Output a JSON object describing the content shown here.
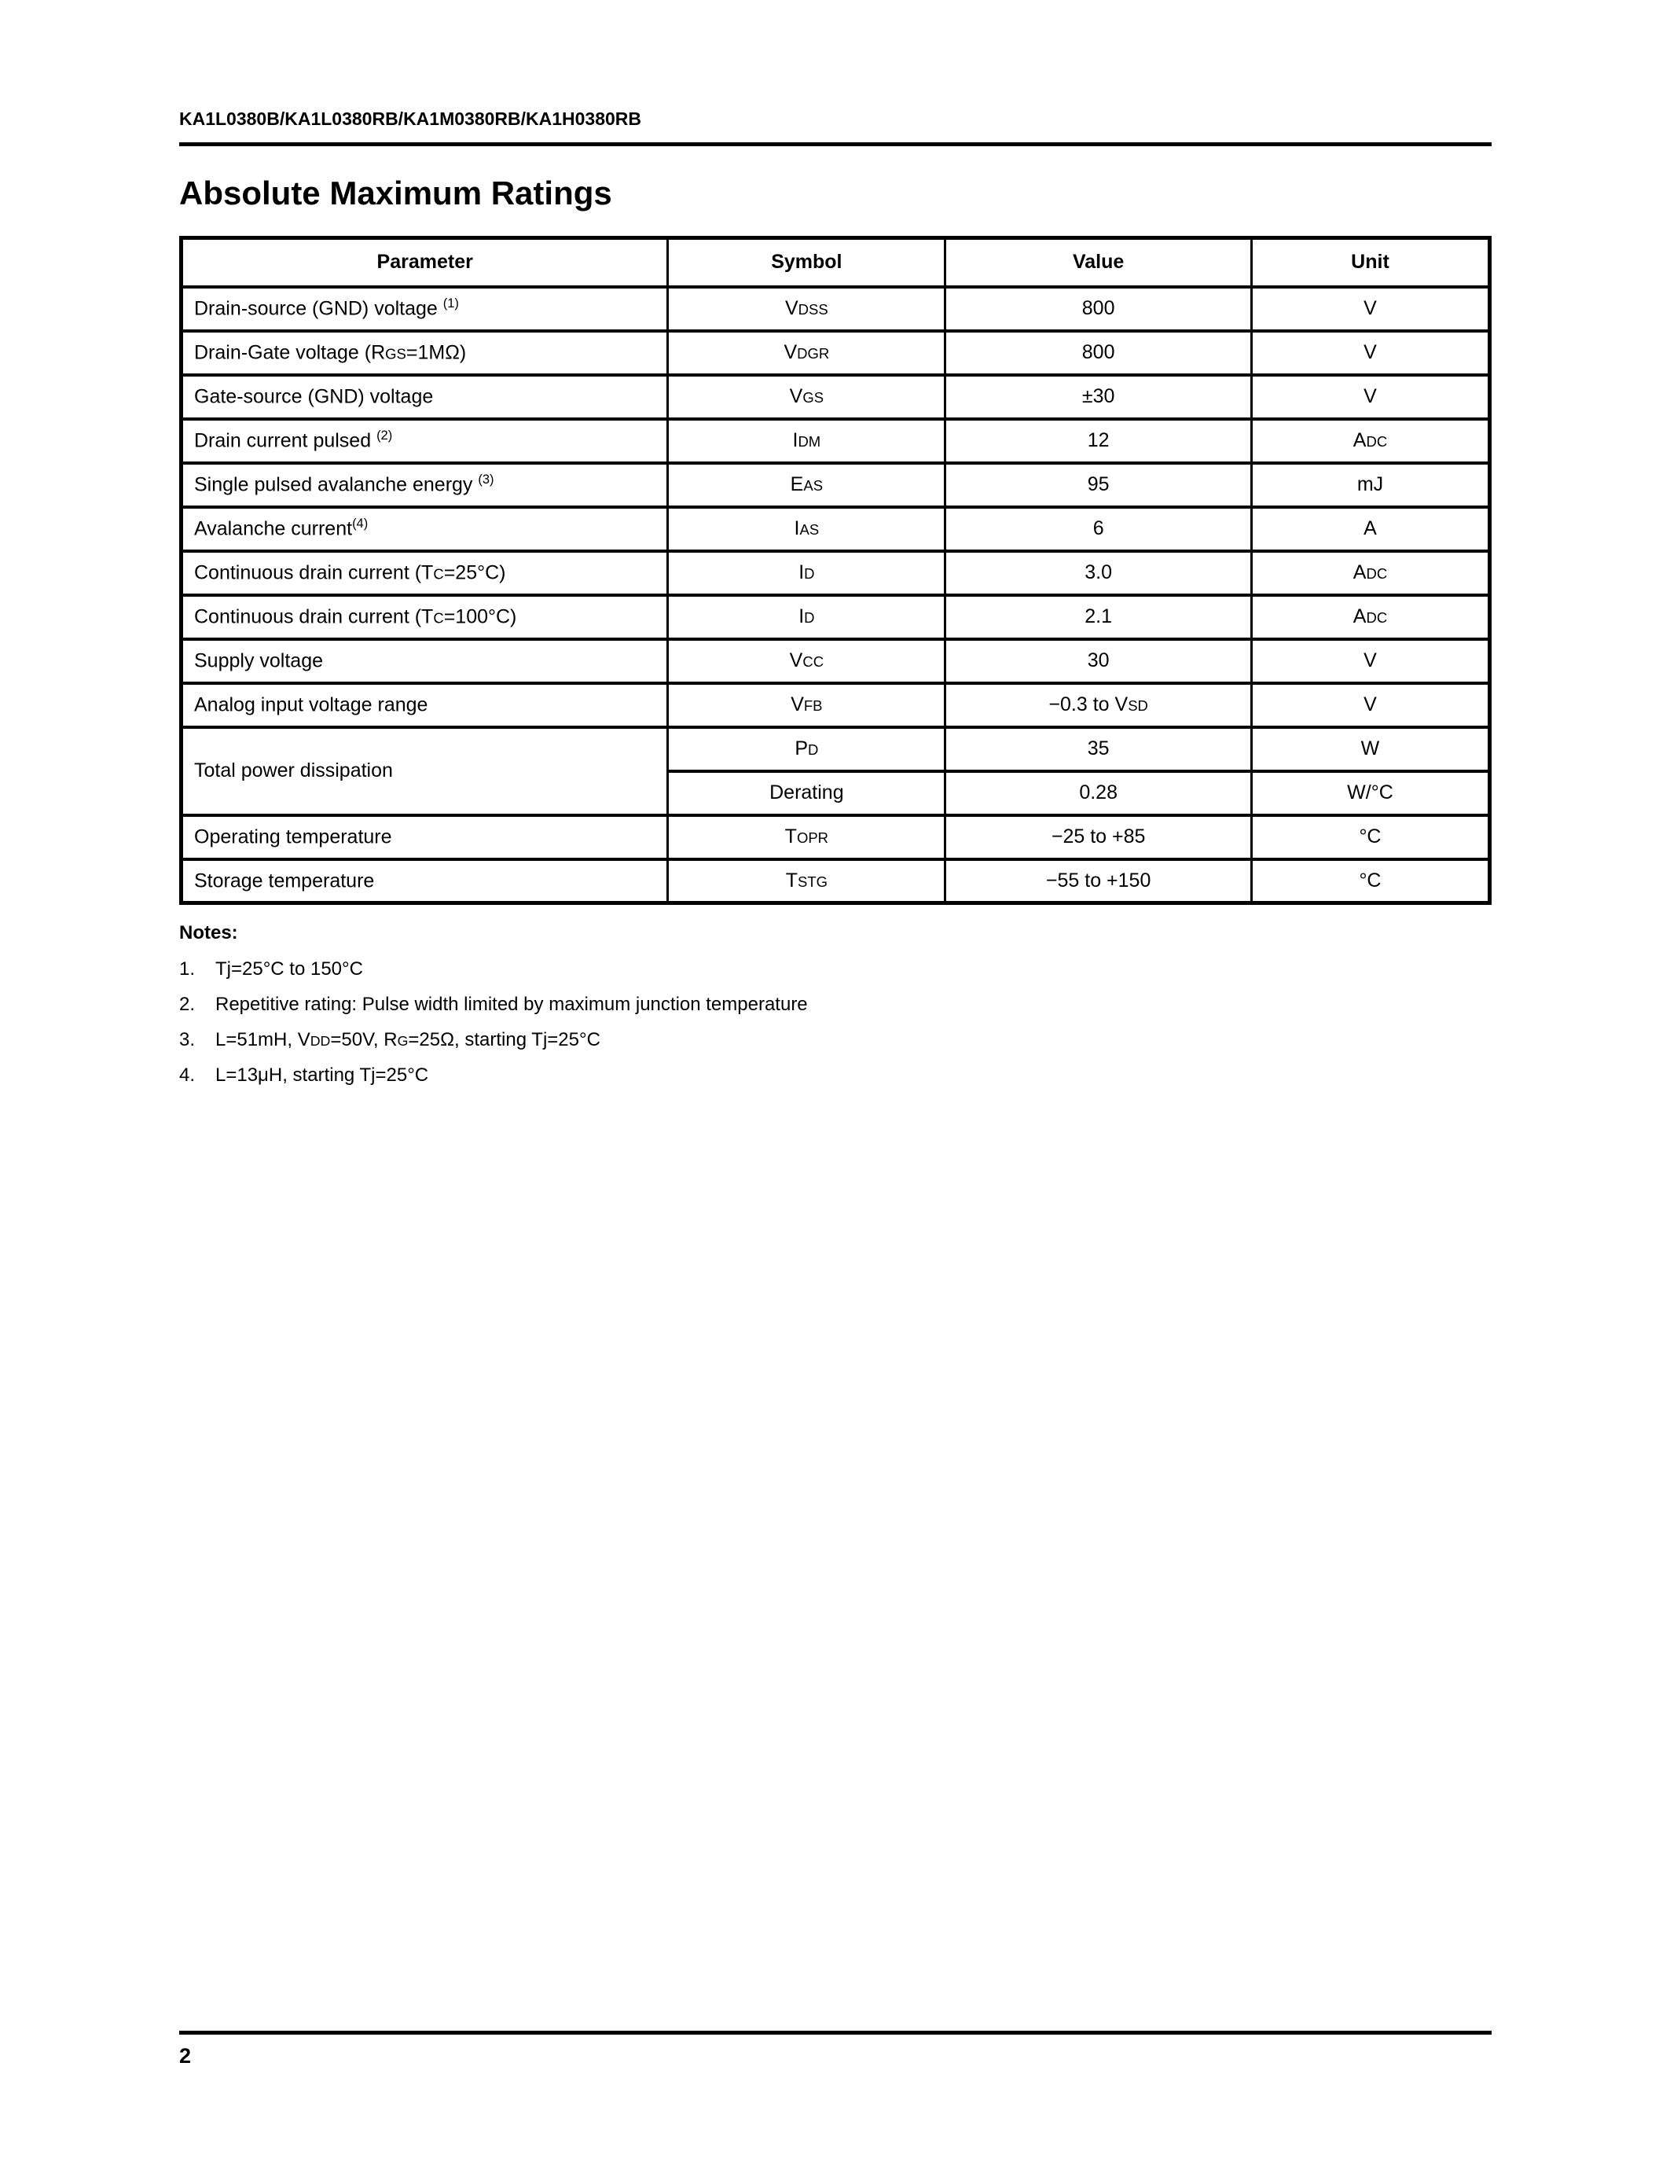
{
  "page": {
    "header": "KA1L0380B/KA1L0380RB/KA1M0380RB/KA1H0380RB",
    "title": "Absolute Maximum Ratings",
    "page_number": "2"
  },
  "table": {
    "headers": {
      "parameter": "Parameter",
      "symbol": "Symbol",
      "value": "Value",
      "unit": "Unit"
    },
    "rows": [
      {
        "p1": "Drain-source (GND) voltage ",
        "psup": "(1)",
        "s1": "V",
        "ssub": "DSS",
        "v1": "800",
        "u1": "V"
      },
      {
        "p1": "Drain-Gate voltage (R",
        "psub": "GS",
        "p2": "=1MΩ)",
        "s1": "V",
        "ssub": "DGR",
        "v1": "800",
        "u1": "V"
      },
      {
        "p1": "Gate-source (GND) voltage",
        "s1": "V",
        "ssub": "GS",
        "v1": "±30",
        "u1": "V"
      },
      {
        "p1": "Drain current pulsed ",
        "psup": "(2)",
        "s1": "I",
        "ssub": "DM",
        "v1": "12",
        "u1": "A",
        "usub": "DC"
      },
      {
        "p1": "Single pulsed avalanche energy ",
        "psup": "(3)",
        "s1": "E",
        "ssub": "AS",
        "v1": "95",
        "u1": "mJ"
      },
      {
        "p1": "Avalanche current",
        "psup": "(4)",
        "s1": "I",
        "ssub": "AS",
        "v1": "6",
        "u1": "A"
      },
      {
        "p1": "Continuous drain current (T",
        "psub": "C",
        "p2": "=25°C)",
        "s1": "I",
        "ssub": "D",
        "v1": "3.0",
        "u1": "A",
        "usub": "DC"
      },
      {
        "p1": "Continuous drain current (T",
        "psub": "C",
        "p2": "=100°C)",
        "s1": "I",
        "ssub": "D",
        "v1": "2.1",
        "u1": "A",
        "usub": "DC"
      },
      {
        "p1": "Supply voltage",
        "s1": "V",
        "ssub": "CC",
        "v1": "30",
        "u1": "V"
      },
      {
        "p1": "Analog input voltage range",
        "s1": "V",
        "ssub": "FB",
        "v1": "−0.3 to V",
        "vsub": "SD",
        "u1": "V"
      },
      {
        "p1": "Total power dissipation",
        "s1": "P",
        "ssub": "D",
        "v1": "35",
        "u1": "W"
      },
      {
        "s1": "Derating",
        "v1": "0.28",
        "u1": "W/°C"
      },
      {
        "p1": "Operating temperature",
        "s1": "T",
        "ssub": "OPR",
        "v1": "−25 to +85",
        "u1": "°C"
      },
      {
        "p1": "Storage temperature",
        "s1": "T",
        "ssub": "STG",
        "v1": "−55 to +150",
        "u1": "°C"
      }
    ]
  },
  "notes": {
    "heading": "Notes:",
    "items": [
      {
        "num": "1.",
        "t1": "Tj=25°C to 150°C"
      },
      {
        "num": "2.",
        "t1": "Repetitive rating: Pulse width limited by maximum junction temperature"
      },
      {
        "num": "3.",
        "t1": "L=51mH, V",
        "sub1": "DD",
        "t2": "=50V, R",
        "sub2": "G",
        "t3": "=25Ω, starting Tj=25°C"
      },
      {
        "num": "4.",
        "t1": "L=13μH, starting Tj=25°C"
      }
    ]
  }
}
